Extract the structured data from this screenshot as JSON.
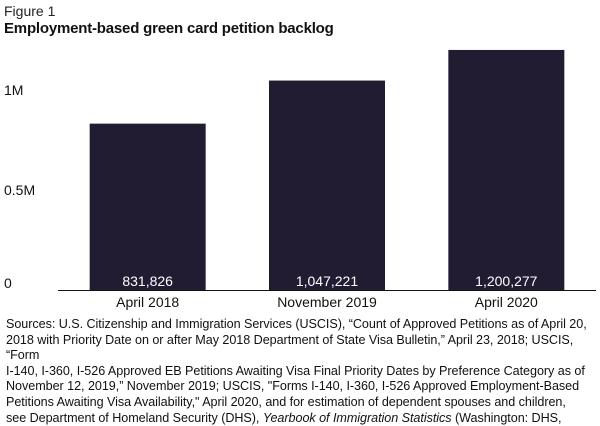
{
  "figure_label": "Figure 1",
  "chart_data": {
    "type": "bar",
    "title": "Employment-based green card petition backlog",
    "categories": [
      "April 2018",
      "November 2019",
      "April 2020"
    ],
    "values": [
      831826,
      1047221,
      1200277
    ],
    "data_labels": [
      "831,826",
      "1,047,221",
      "1,200,277"
    ],
    "ylim": [
      0,
      1250000
    ],
    "yticks": [
      0,
      500000,
      1000000
    ],
    "ytick_labels": [
      "0",
      "0.5M",
      "1M"
    ],
    "xlabel": "",
    "ylabel": "",
    "grid": false,
    "colors": {
      "bar": "#221c33",
      "data_label": "#ffffff",
      "axis": "#111111"
    }
  },
  "sources": {
    "line1": "Sources: U.S. Citizenship and Immigration Services (USCIS), “Count of Approved Petitions as of April 20,",
    "line2": "2018 with Priority Date on or after May 2018 Department of State Visa Bulletin,” April 23, 2018; USCIS,",
    "line3": "“Form",
    "line4": "I-140, I-360, I-526 Approved EB Petitions Awaiting Visa Final Priority Dates by Preference Category as of",
    "line5": "November 12, 2019,” November 2019; USCIS, \"Forms I-140, I-360, I-526 Approved Employment-Based",
    "line6": "Petitions Awaiting Visa Availability,\" April 2020, and for estimation of dependent spouses and children,",
    "line7_start": "see Department of Homeland Security (DHS), ",
    "line7_italic": "Yearbook of Immigration Statistics",
    "line7_end": " (Washington: DHS,"
  }
}
